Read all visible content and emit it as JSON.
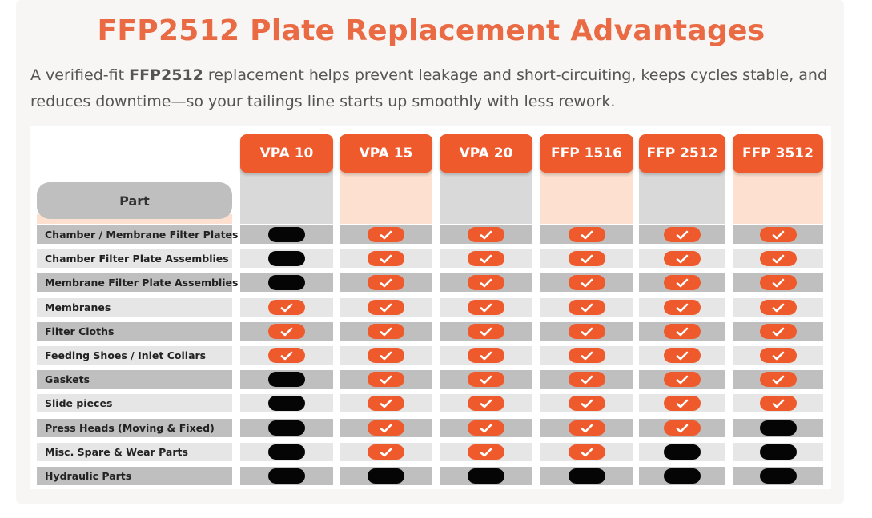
{
  "heading": {
    "title": "FFP2512 Plate Replacement Advantages",
    "intro_prefix": "A verified-fit ",
    "intro_bold": "FFP2512",
    "intro_suffix": " replacement helps prevent leakage and short-circuiting, keeps cycles stable, and reduces downtime—so your tailings line starts up smoothly with less rework."
  },
  "table": {
    "part_header": "Part",
    "models": [
      "VPA 10",
      "VPA 15",
      "VPA 20",
      "FFP 1516",
      "FFP 2512",
      "FFP 3512"
    ],
    "rows": [
      {
        "label": "Chamber / Membrane Filter Plates",
        "support": [
          false,
          true,
          true,
          true,
          true,
          true
        ]
      },
      {
        "label": "Chamber Filter Plate Assemblies",
        "support": [
          false,
          true,
          true,
          true,
          true,
          true
        ]
      },
      {
        "label": "Membrane Filter Plate Assemblies",
        "support": [
          false,
          true,
          true,
          true,
          true,
          true
        ]
      },
      {
        "label": "Membranes",
        "support": [
          true,
          true,
          true,
          true,
          true,
          true
        ]
      },
      {
        "label": "Filter Cloths",
        "support": [
          true,
          true,
          true,
          true,
          true,
          true
        ]
      },
      {
        "label": "Feeding Shoes / Inlet Collars",
        "support": [
          true,
          true,
          true,
          true,
          true,
          true
        ]
      },
      {
        "label": "Gaskets",
        "support": [
          false,
          true,
          true,
          true,
          true,
          true
        ]
      },
      {
        "label": "Slide pieces",
        "support": [
          false,
          true,
          true,
          true,
          true,
          true
        ]
      },
      {
        "label": "Press Heads (Moving & Fixed)",
        "support": [
          false,
          true,
          true,
          true,
          true,
          false
        ]
      },
      {
        "label": "Misc. Spare & Wear Parts",
        "support": [
          false,
          true,
          true,
          true,
          false,
          false
        ]
      },
      {
        "label": "Hydraulic Parts",
        "support": [
          false,
          false,
          false,
          false,
          false,
          false
        ]
      }
    ],
    "legend_icons": {
      "yes": "check-icon",
      "no": "unavailable-icon"
    },
    "colors": {
      "accent": "#ef5a2d",
      "title": "#ea6a43",
      "no": "#050505"
    }
  }
}
